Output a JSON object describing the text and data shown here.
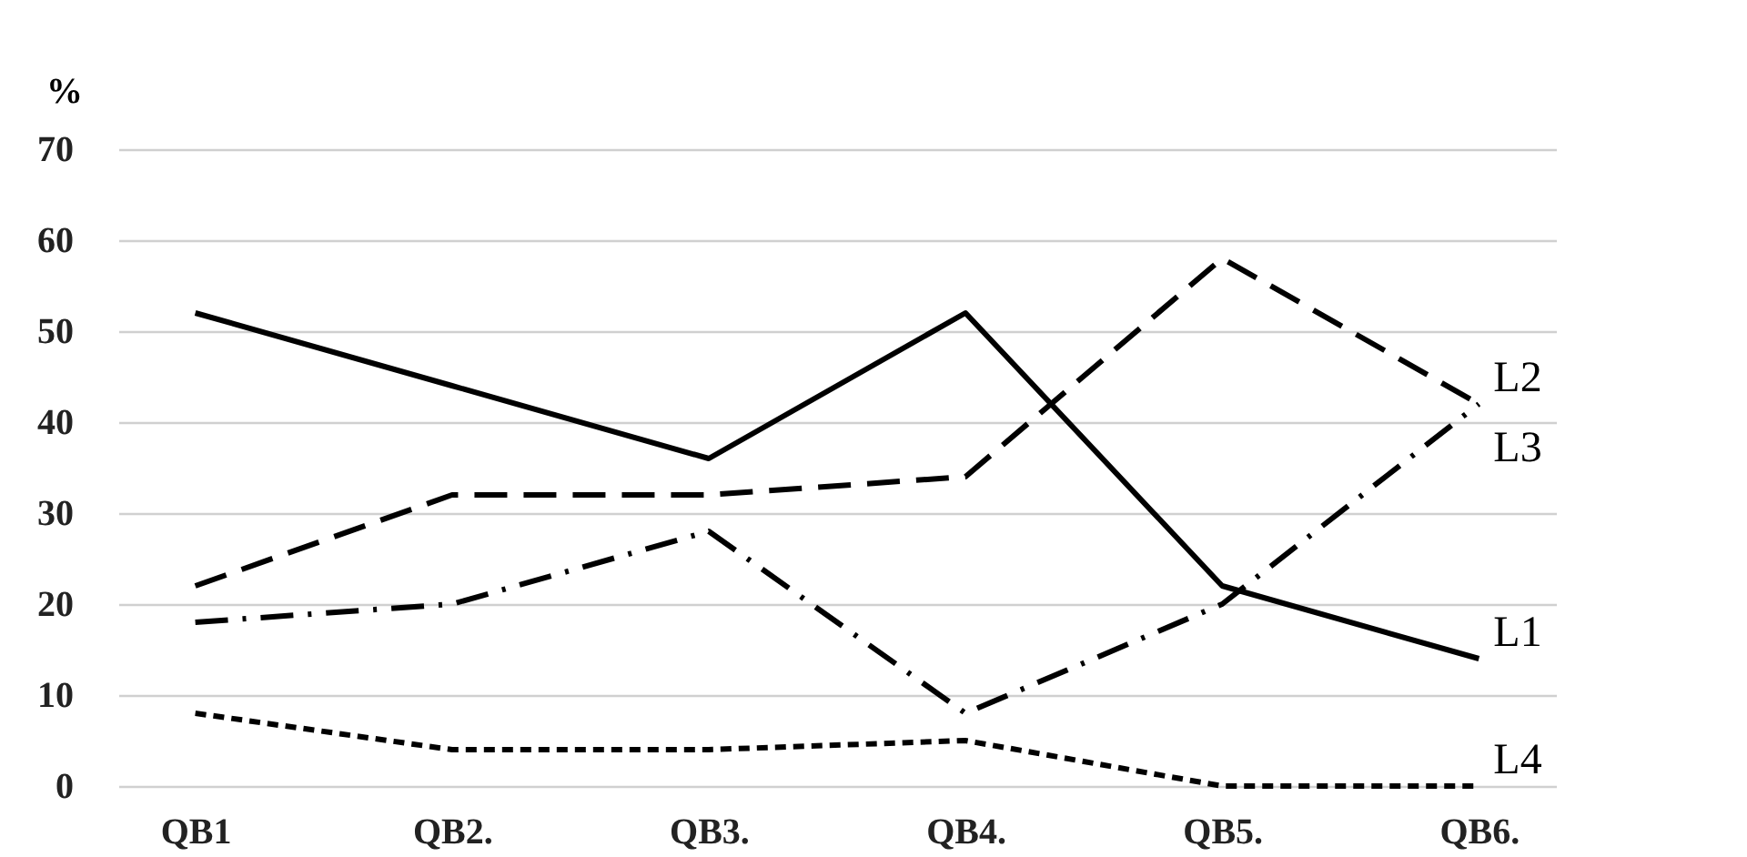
{
  "chart_data": {
    "type": "line",
    "ylabel": "%",
    "categories": [
      "QB1",
      "QB2.",
      "QB3.",
      "QB4.",
      "QB5.",
      "QB6."
    ],
    "series": [
      {
        "name": "L1",
        "color": "#000000",
        "line_style": "solid",
        "values": [
          52,
          44,
          36,
          52,
          22,
          14
        ]
      },
      {
        "name": "L2",
        "color": "#000000",
        "line_style": "dashed",
        "values": [
          22,
          32,
          32,
          34,
          58,
          42
        ]
      },
      {
        "name": "L3",
        "color": "#000000",
        "line_style": "dashdot",
        "values": [
          18,
          20,
          28,
          8,
          20,
          42
        ]
      },
      {
        "name": "L4",
        "color": "#000000",
        "line_style": "dotted",
        "values": [
          8,
          4,
          4,
          5,
          0,
          0
        ]
      }
    ],
    "ylim": [
      0,
      70
    ],
    "yticks": [
      0,
      10,
      20,
      30,
      40,
      50,
      60,
      70
    ],
    "grid": "y",
    "marker": "none"
  }
}
